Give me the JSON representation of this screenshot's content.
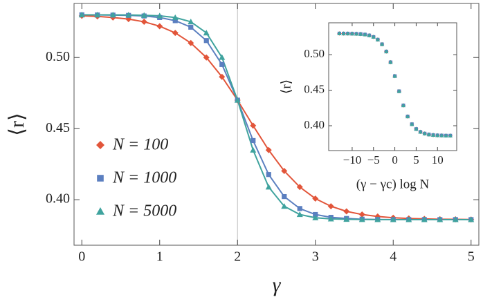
{
  "chart_data": [
    {
      "type": "line",
      "x_label": "γ",
      "y_label": "⟨r⟩",
      "x": [
        0,
        0.2,
        0.4,
        0.6,
        0.8,
        1.0,
        1.2,
        1.4,
        1.6,
        1.8,
        2.0,
        2.2,
        2.4,
        2.6,
        2.8,
        3.0,
        3.2,
        3.4,
        3.6,
        3.8,
        4.0,
        4.2,
        4.4,
        4.6,
        4.8,
        5.0
      ],
      "series": [
        {
          "name": "N = 100",
          "color": "#e2553a",
          "marker": "diamond",
          "values": [
            0.5293,
            0.5289,
            0.5281,
            0.527,
            0.5251,
            0.522,
            0.5173,
            0.5102,
            0.5,
            0.4864,
            0.47,
            0.4521,
            0.4349,
            0.4202,
            0.4089,
            0.4008,
            0.3954,
            0.3918,
            0.3896,
            0.3882,
            0.3873,
            0.3868,
            0.3865,
            0.3863,
            0.3862,
            0.3861
          ]
        },
        {
          "name": "N = 1000",
          "color": "#5b7fc0",
          "marker": "square",
          "values": [
            0.53,
            0.5299,
            0.5298,
            0.5296,
            0.5292,
            0.5281,
            0.5259,
            0.5213,
            0.5119,
            0.4951,
            0.47,
            0.4416,
            0.4177,
            0.4022,
            0.3938,
            0.3896,
            0.3876,
            0.3868,
            0.3863,
            0.3861,
            0.386,
            0.386,
            0.386,
            0.386,
            0.386,
            0.386
          ]
        },
        {
          "name": "N = 5000",
          "color": "#3fa39e",
          "marker": "triangle",
          "values": [
            0.53,
            0.53,
            0.53,
            0.5299,
            0.5297,
            0.5293,
            0.5281,
            0.5251,
            0.5173,
            0.5001,
            0.47,
            0.4349,
            0.4089,
            0.3954,
            0.3896,
            0.3873,
            0.3865,
            0.3862,
            0.3861,
            0.386,
            0.386,
            0.386,
            0.386,
            0.386,
            0.386,
            0.386
          ]
        }
      ],
      "xlim": [
        -0.1,
        5.1
      ],
      "ylim": [
        0.368,
        0.538
      ],
      "xticks": [
        0,
        1,
        2,
        3,
        4,
        5
      ],
      "yticks": [
        {
          "value": 0.4,
          "label": "0.40"
        },
        {
          "value": 0.45,
          "label": "0.45"
        },
        {
          "value": 0.5,
          "label": "0.50"
        }
      ],
      "reference_x": 2,
      "legend": "center left"
    },
    {
      "type": "scatter",
      "x_label": "(γ − γc) log N",
      "y_label": "⟨r⟩",
      "x": [
        -13,
        -12,
        -11,
        -10,
        -9,
        -8,
        -7,
        -6,
        -5,
        -4,
        -3,
        -2,
        -1,
        0,
        1,
        2,
        3,
        4,
        5,
        6,
        7,
        8,
        9,
        10,
        11,
        12,
        13
      ],
      "series": [
        {
          "name": "N = 100",
          "color": "#e2553a",
          "marker": "diamond",
          "values": [
            0.53,
            0.5299,
            0.5299,
            0.5297,
            0.5295,
            0.5292,
            0.5285,
            0.5273,
            0.5251,
            0.5213,
            0.5148,
            0.5046,
            0.4895,
            0.47,
            0.4486,
            0.4287,
            0.4131,
            0.4022,
            0.3954,
            0.3913,
            0.389,
            0.3877,
            0.3869,
            0.3865,
            0.3863,
            0.3861,
            0.3861
          ]
        },
        {
          "name": "N = 1000",
          "color": "#5b7fc0",
          "marker": "square",
          "values": [
            0.53,
            0.5299,
            0.5299,
            0.5297,
            0.5295,
            0.5292,
            0.5285,
            0.5273,
            0.5251,
            0.5213,
            0.5148,
            0.5046,
            0.4895,
            0.47,
            0.4486,
            0.4287,
            0.4131,
            0.4022,
            0.3954,
            0.3913,
            0.389,
            0.3877,
            0.3869,
            0.3865,
            0.3863,
            0.3861,
            0.3861
          ]
        },
        {
          "name": "N = 5000",
          "color": "#3fa39e",
          "marker": "triangle",
          "values": [
            0.53,
            0.5299,
            0.5299,
            0.5297,
            0.5295,
            0.5292,
            0.5285,
            0.5273,
            0.5251,
            0.5213,
            0.5148,
            0.5046,
            0.4895,
            0.47,
            0.4486,
            0.4287,
            0.4131,
            0.4022,
            0.3954,
            0.3913,
            0.389,
            0.3877,
            0.3869,
            0.3865,
            0.3863,
            0.3861,
            0.3861
          ]
        }
      ],
      "xlim": [
        -15.5,
        14.5
      ],
      "ylim": [
        0.365,
        0.545
      ],
      "xticks": [
        {
          "value": -10,
          "label": "−10"
        },
        {
          "value": -5,
          "label": "−5"
        },
        0,
        5,
        10
      ],
      "yticks": [
        {
          "value": 0.4,
          "label": "0.40"
        },
        {
          "value": 0.45,
          "label": "0.45"
        },
        {
          "value": 0.5,
          "label": "0.50"
        }
      ]
    }
  ]
}
